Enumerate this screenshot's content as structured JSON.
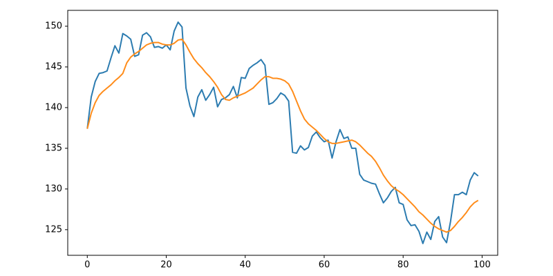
{
  "chart_data": {
    "type": "line",
    "x": [
      0,
      1,
      2,
      3,
      4,
      5,
      6,
      7,
      8,
      9,
      10,
      11,
      12,
      13,
      14,
      15,
      16,
      17,
      18,
      19,
      20,
      21,
      22,
      23,
      24,
      25,
      26,
      27,
      28,
      29,
      30,
      31,
      32,
      33,
      34,
      35,
      36,
      37,
      38,
      39,
      40,
      41,
      42,
      43,
      44,
      45,
      46,
      47,
      48,
      49,
      50,
      51,
      52,
      53,
      54,
      55,
      56,
      57,
      58,
      59,
      60,
      61,
      62,
      63,
      64,
      65,
      66,
      67,
      68,
      69,
      70,
      71,
      72,
      73,
      74,
      75,
      76,
      77,
      78,
      79,
      80,
      81,
      82,
      83,
      84,
      85,
      86,
      87,
      88,
      89,
      90,
      91,
      92,
      93,
      94,
      95,
      96,
      97,
      98,
      99
    ],
    "series": [
      {
        "color": "#2b7bb0",
        "values": [
          137.4,
          141.3,
          143.2,
          144.2,
          144.3,
          144.5,
          146.1,
          147.6,
          146.7,
          149.1,
          148.8,
          148.4,
          146.3,
          146.5,
          148.9,
          149.2,
          148.7,
          147.4,
          147.5,
          147.3,
          147.7,
          147.1,
          149.4,
          150.5,
          149.9,
          142.4,
          140.2,
          138.9,
          141.3,
          142.2,
          140.9,
          141.6,
          142.5,
          140.1,
          141.0,
          141.2,
          141.6,
          142.6,
          141.2,
          143.7,
          143.6,
          144.8,
          145.2,
          145.5,
          145.9,
          145.2,
          140.4,
          140.6,
          141.1,
          141.8,
          141.5,
          140.8,
          134.5,
          134.4,
          135.3,
          134.8,
          135.1,
          136.5,
          137.0,
          136.3,
          135.8,
          136.0,
          133.8,
          135.8,
          137.3,
          136.2,
          136.4,
          135.0,
          135.0,
          131.8,
          131.1,
          130.9,
          130.7,
          130.6,
          129.4,
          128.3,
          128.9,
          129.7,
          130.2,
          128.3,
          128.1,
          126.2,
          125.5,
          125.6,
          124.8,
          123.3,
          124.7,
          123.8,
          126.0,
          126.6,
          124.1,
          123.4,
          126.0,
          129.3,
          129.3,
          129.6,
          129.3,
          131.1,
          132.0,
          131.6
        ]
      },
      {
        "color": "#ff8c1a",
        "values": [
          137.4,
          139.3,
          140.6,
          141.5,
          142.0,
          142.4,
          142.8,
          143.3,
          143.7,
          144.2,
          145.5,
          146.2,
          146.6,
          146.9,
          147.3,
          147.7,
          147.9,
          148.0,
          148.0,
          147.8,
          147.7,
          147.7,
          147.9,
          148.3,
          148.4,
          147.7,
          146.8,
          146.0,
          145.4,
          144.9,
          144.3,
          143.8,
          143.2,
          142.5,
          141.6,
          141.0,
          140.9,
          141.2,
          141.4,
          141.6,
          141.8,
          142.1,
          142.4,
          142.9,
          143.4,
          143.8,
          143.8,
          143.6,
          143.6,
          143.5,
          143.3,
          142.9,
          142.0,
          140.8,
          139.6,
          138.6,
          138.0,
          137.6,
          137.2,
          136.7,
          136.2,
          135.8,
          135.6,
          135.6,
          135.7,
          135.8,
          135.9,
          136.0,
          135.8,
          135.4,
          134.9,
          134.4,
          134.0,
          133.4,
          132.6,
          131.7,
          131.0,
          130.4,
          130.0,
          129.7,
          129.3,
          128.8,
          128.3,
          127.8,
          127.2,
          126.8,
          126.3,
          125.8,
          125.4,
          125.1,
          124.9,
          124.7,
          124.9,
          125.4,
          126.0,
          126.5,
          127.1,
          127.8,
          128.3,
          128.6
        ]
      }
    ],
    "xlim": [
      -4.95,
      103.95
    ],
    "xticks": [
      0,
      20,
      40,
      60,
      80,
      100
    ],
    "ylim": [
      121.85,
      151.95
    ],
    "yticks": [
      125,
      130,
      135,
      140,
      145,
      150
    ],
    "grid": false
  }
}
